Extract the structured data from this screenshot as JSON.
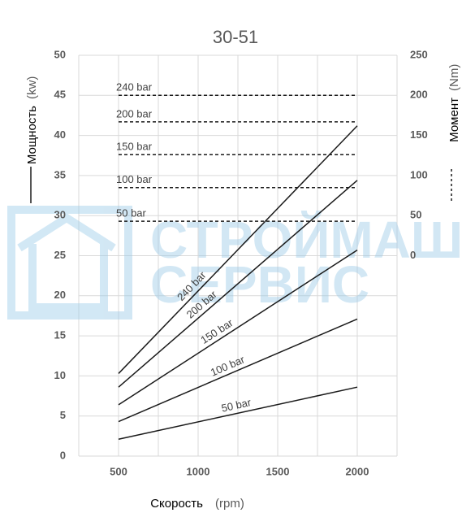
{
  "chart_data": {
    "type": "line",
    "title": "30-51",
    "x_label": "Скорость",
    "x_unit": "(rpm)",
    "y_label": "Мощность",
    "y_unit": "(kw)",
    "y2_label": "Момент",
    "y2_unit": "(Nm)",
    "watermark": [
      "СТРОЙМАШ",
      "СЕРВИС"
    ],
    "x": [
      500,
      2000
    ],
    "xlim": [
      250,
      2250
    ],
    "xticks": [
      500,
      1000,
      1500,
      2000
    ],
    "xgrid": [
      250,
      500,
      750,
      1000,
      1250,
      1500,
      1750,
      2000,
      2250
    ],
    "ylim": [
      0,
      50
    ],
    "yticks": [
      0,
      5,
      10,
      15,
      20,
      25,
      30,
      35,
      40,
      45,
      50
    ],
    "y2lim": [
      -250,
      250
    ],
    "y2ticks": [
      0,
      50,
      100,
      150,
      200,
      250
    ],
    "grid": true,
    "power_series": [
      {
        "name": "240 bar",
        "color": "#1a1a1a",
        "values": [
          10.3,
          41.2
        ]
      },
      {
        "name": "200 bar",
        "color": "#1a1a1a",
        "values": [
          8.6,
          34.4
        ]
      },
      {
        "name": "150 bar",
        "color": "#1a1a1a",
        "values": [
          6.4,
          25.7
        ]
      },
      {
        "name": "100 bar",
        "color": "#1a1a1a",
        "values": [
          4.3,
          17.1
        ]
      },
      {
        "name": "50 bar",
        "color": "#1a1a1a",
        "values": [
          2.1,
          8.6
        ]
      }
    ],
    "torque_series": [
      {
        "name": "240 bar",
        "color": "#1a1a1a",
        "axis": "y2",
        "values": [
          200,
          200
        ]
      },
      {
        "name": "200 bar",
        "color": "#1a1a1a",
        "axis": "y2",
        "values": [
          167,
          167
        ]
      },
      {
        "name": "150 bar",
        "color": "#1a1a1a",
        "axis": "y2",
        "values": [
          126,
          126
        ]
      },
      {
        "name": "100 bar",
        "color": "#1a1a1a",
        "axis": "y2",
        "values": [
          85,
          85
        ]
      },
      {
        "name": "50 bar",
        "color": "#1a1a1a",
        "axis": "y2",
        "values": [
          43,
          43
        ]
      }
    ]
  }
}
